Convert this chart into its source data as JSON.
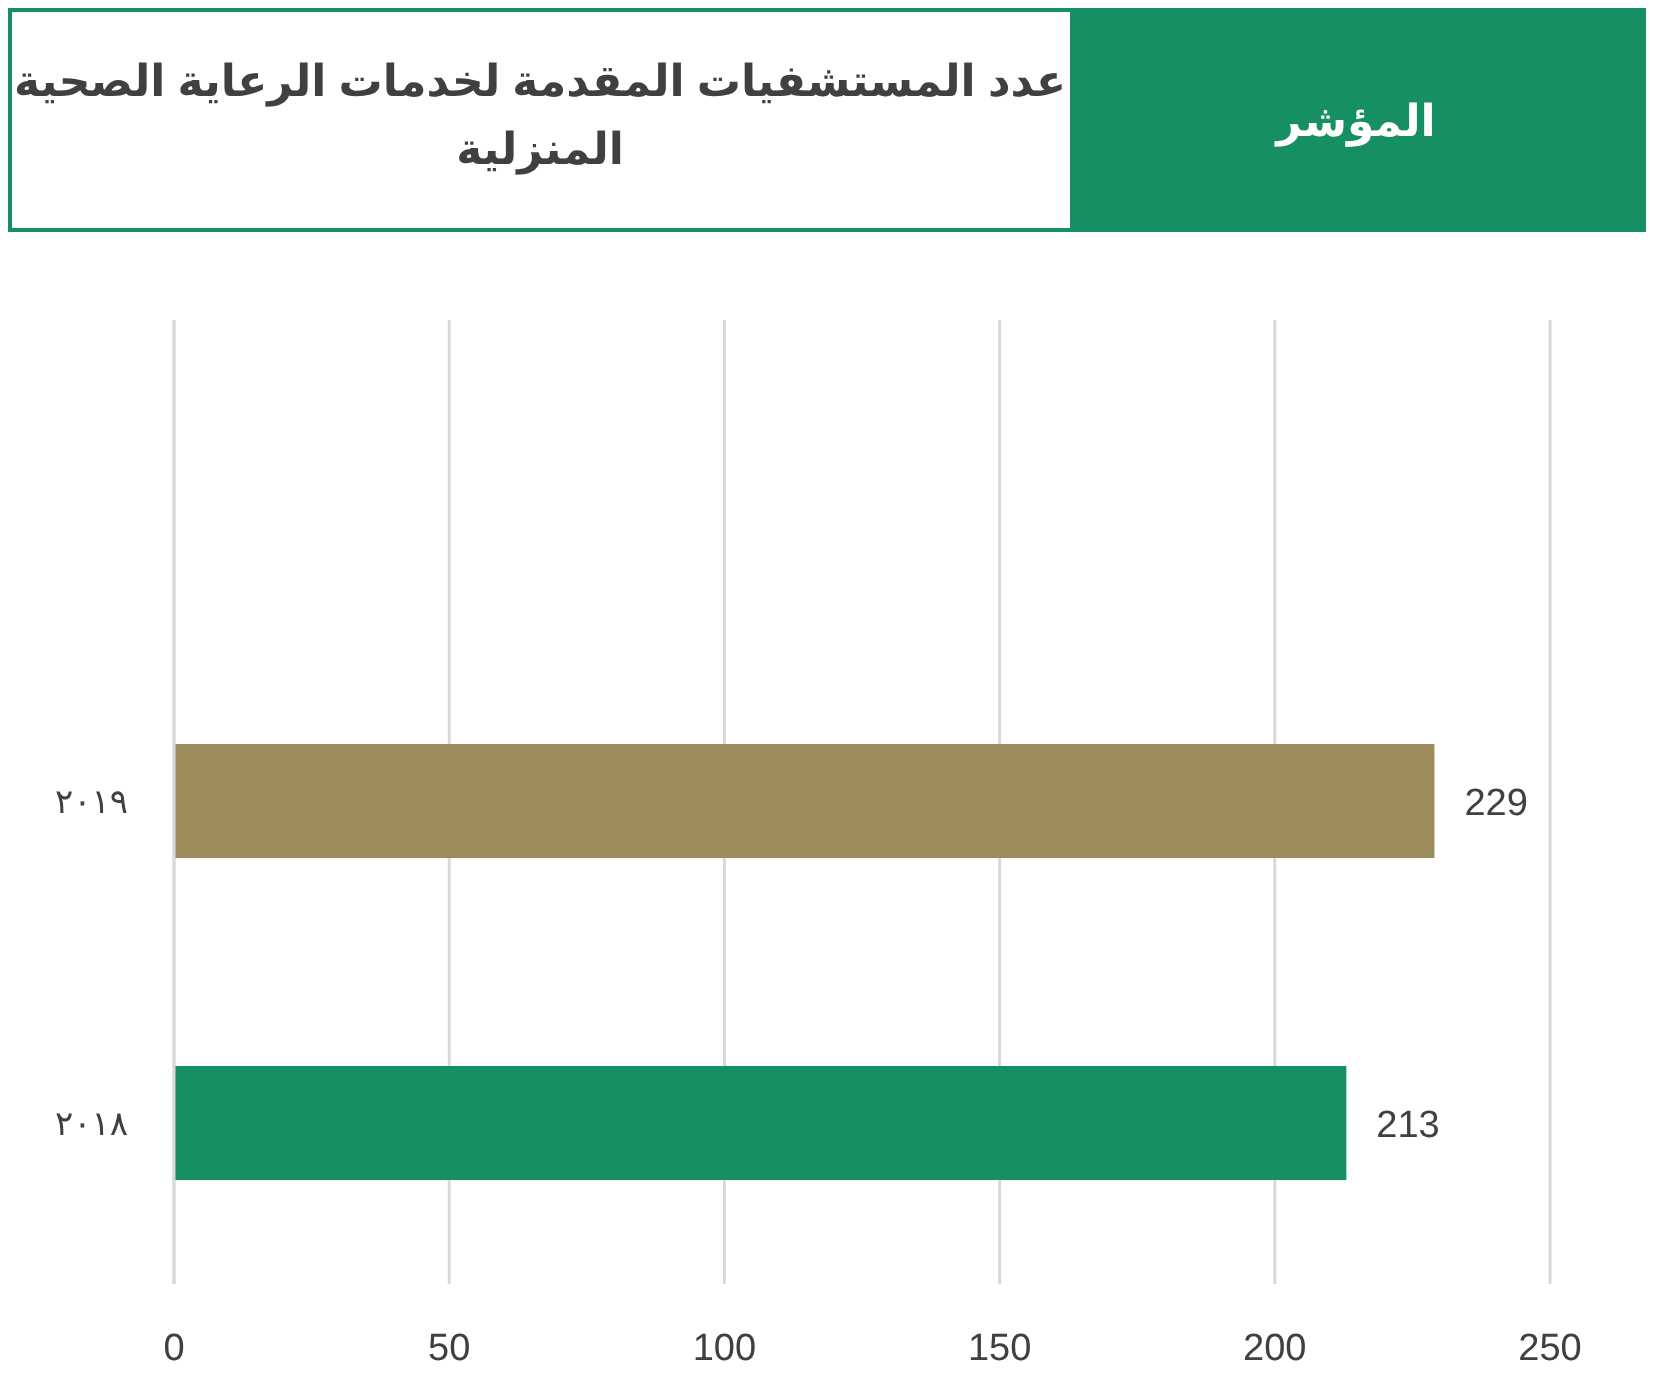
{
  "chart_data": {
    "type": "bar",
    "orientation": "horizontal",
    "title": "عدد المستشفيات المقدمة لخدمات الرعاية الصحية المنزلية",
    "subtitle": "المؤشر",
    "categories": [
      "٢٠١٩",
      "٢٠١٨"
    ],
    "values": [
      229,
      213
    ],
    "colors": [
      "#9c8c5c",
      "#168f62"
    ],
    "xlim": [
      0,
      250
    ],
    "xticks": [
      0,
      50,
      100,
      150,
      200,
      250
    ],
    "grid": "x",
    "data_labels": true
  }
}
